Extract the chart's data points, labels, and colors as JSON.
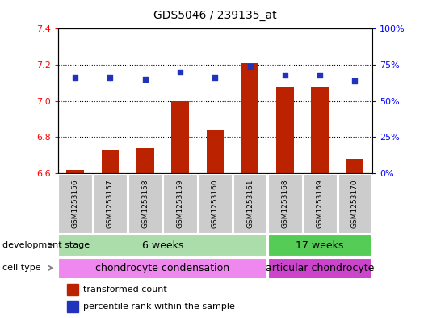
{
  "title": "GDS5046 / 239135_at",
  "samples": [
    "GSM1253156",
    "GSM1253157",
    "GSM1253158",
    "GSM1253159",
    "GSM1253160",
    "GSM1253161",
    "GSM1253168",
    "GSM1253169",
    "GSM1253170"
  ],
  "bar_values": [
    6.62,
    6.73,
    6.74,
    7.0,
    6.84,
    7.21,
    7.08,
    7.08,
    6.68
  ],
  "scatter_values": [
    7.13,
    7.13,
    7.12,
    7.16,
    7.13,
    7.19,
    7.14,
    7.14,
    7.11
  ],
  "ylim_left": [
    6.6,
    7.4
  ],
  "ylim_right": [
    0,
    100
  ],
  "yticks_left": [
    6.6,
    6.8,
    7.0,
    7.2,
    7.4
  ],
  "ytick_labels_right": [
    "0%",
    "25%",
    "50%",
    "75%",
    "100%"
  ],
  "bar_color": "#bb2200",
  "scatter_color": "#2233bb",
  "dev_stage_label": "development stage",
  "cell_type_label": "cell type",
  "group1_label": "6 weeks",
  "group2_label": "17 weeks",
  "celltype1_label": "chondrocyte condensation",
  "celltype2_label": "articular chondrocyte",
  "group1_color": "#aaddaa",
  "group2_color": "#55cc55",
  "celltype1_color": "#ee88ee",
  "celltype2_color": "#cc44cc",
  "legend_red_label": "transformed count",
  "legend_blue_label": "percentile rank within the sample",
  "title_fontsize": 10,
  "tick_fontsize": 8,
  "annot_fontsize": 8.5,
  "n_group1": 6,
  "n_group2": 3
}
